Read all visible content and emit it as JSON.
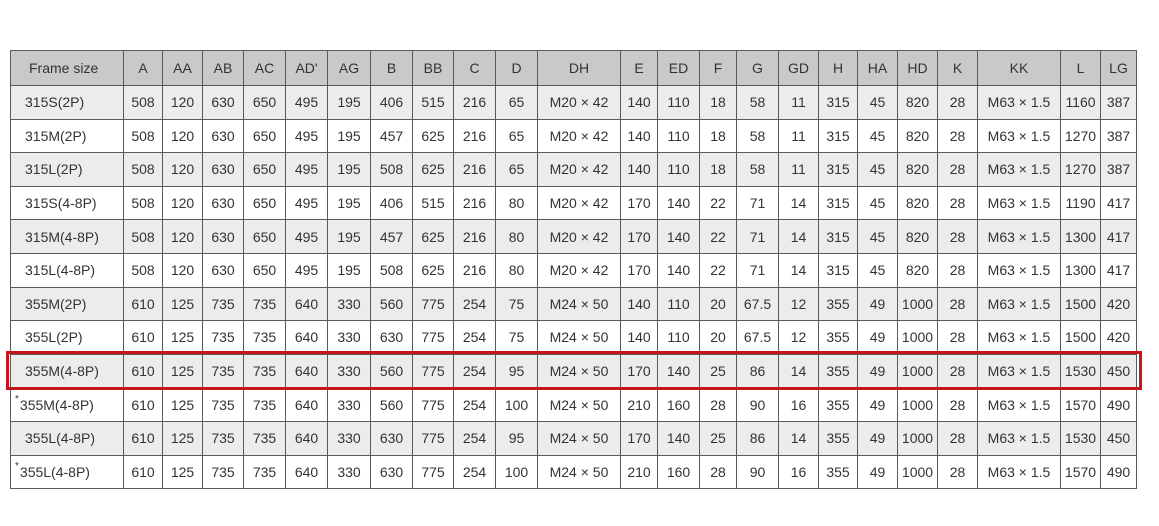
{
  "columns": [
    "Frame size",
    "A",
    "AA",
    "AB",
    "AC",
    "AD'",
    "AG",
    "B",
    "BB",
    "C",
    "D",
    "DH",
    "E",
    "ED",
    "F",
    "G",
    "GD",
    "H",
    "HA",
    "HD",
    "K",
    "KK",
    "L",
    "LG"
  ],
  "rows": [
    {
      "mark": "",
      "cells": [
        "315S(2P)",
        "508",
        "120",
        "630",
        "650",
        "495",
        "195",
        "406",
        "515",
        "216",
        "65",
        "M20 × 42",
        "140",
        "110",
        "18",
        "58",
        "11",
        "315",
        "45",
        "820",
        "28",
        "M63 × 1.5",
        "1160",
        "387"
      ]
    },
    {
      "mark": "",
      "cells": [
        "315M(2P)",
        "508",
        "120",
        "630",
        "650",
        "495",
        "195",
        "457",
        "625",
        "216",
        "65",
        "M20 × 42",
        "140",
        "110",
        "18",
        "58",
        "11",
        "315",
        "45",
        "820",
        "28",
        "M63 × 1.5",
        "1270",
        "387"
      ]
    },
    {
      "mark": "",
      "cells": [
        "315L(2P)",
        "508",
        "120",
        "630",
        "650",
        "495",
        "195",
        "508",
        "625",
        "216",
        "65",
        "M20 × 42",
        "140",
        "110",
        "18",
        "58",
        "11",
        "315",
        "45",
        "820",
        "28",
        "M63 × 1.5",
        "1270",
        "387"
      ]
    },
    {
      "mark": "",
      "cells": [
        "315S(4-8P)",
        "508",
        "120",
        "630",
        "650",
        "495",
        "195",
        "406",
        "515",
        "216",
        "80",
        "M20 × 42",
        "170",
        "140",
        "22",
        "71",
        "14",
        "315",
        "45",
        "820",
        "28",
        "M63 × 1.5",
        "1190",
        "417"
      ]
    },
    {
      "mark": "",
      "cells": [
        "315M(4-8P)",
        "508",
        "120",
        "630",
        "650",
        "495",
        "195",
        "457",
        "625",
        "216",
        "80",
        "M20 × 42",
        "170",
        "140",
        "22",
        "71",
        "14",
        "315",
        "45",
        "820",
        "28",
        "M63 × 1.5",
        "1300",
        "417"
      ]
    },
    {
      "mark": "",
      "cells": [
        "315L(4-8P)",
        "508",
        "120",
        "630",
        "650",
        "495",
        "195",
        "508",
        "625",
        "216",
        "80",
        "M20 × 42",
        "170",
        "140",
        "22",
        "71",
        "14",
        "315",
        "45",
        "820",
        "28",
        "M63 × 1.5",
        "1300",
        "417"
      ]
    },
    {
      "mark": "",
      "cells": [
        "355M(2P)",
        "610",
        "125",
        "735",
        "735",
        "640",
        "330",
        "560",
        "775",
        "254",
        "75",
        "M24 × 50",
        "140",
        "110",
        "20",
        "67.5",
        "12",
        "355",
        "49",
        "1000",
        "28",
        "M63 × 1.5",
        "1500",
        "420"
      ]
    },
    {
      "mark": "",
      "cells": [
        "355L(2P)",
        "610",
        "125",
        "735",
        "735",
        "640",
        "330",
        "630",
        "775",
        "254",
        "75",
        "M24 × 50",
        "140",
        "110",
        "20",
        "67.5",
        "12",
        "355",
        "49",
        "1000",
        "28",
        "M63 × 1.5",
        "1500",
        "420"
      ]
    },
    {
      "mark": "",
      "highlighted": true,
      "cells": [
        "355M(4-8P)",
        "610",
        "125",
        "735",
        "735",
        "640",
        "330",
        "560",
        "775",
        "254",
        "95",
        "M24 × 50",
        "170",
        "140",
        "25",
        "86",
        "14",
        "355",
        "49",
        "1000",
        "28",
        "M63 × 1.5",
        "1530",
        "450"
      ]
    },
    {
      "mark": "*",
      "cells": [
        "355M(4-8P)",
        "610",
        "125",
        "735",
        "735",
        "640",
        "330",
        "560",
        "775",
        "254",
        "100",
        "M24 × 50",
        "210",
        "160",
        "28",
        "90",
        "16",
        "355",
        "49",
        "1000",
        "28",
        "M63 × 1.5",
        "1570",
        "490"
      ]
    },
    {
      "mark": "",
      "cells": [
        "355L(4-8P)",
        "610",
        "125",
        "735",
        "735",
        "640",
        "330",
        "630",
        "775",
        "254",
        "95",
        "M24 × 50",
        "170",
        "140",
        "25",
        "86",
        "14",
        "355",
        "49",
        "1000",
        "28",
        "M63 × 1.5",
        "1530",
        "450"
      ]
    },
    {
      "mark": "*",
      "cells": [
        "355L(4-8P)",
        "610",
        "125",
        "735",
        "735",
        "640",
        "330",
        "630",
        "775",
        "254",
        "100",
        "M24 × 50",
        "210",
        "160",
        "28",
        "90",
        "16",
        "355",
        "49",
        "1000",
        "28",
        "M63 × 1.5",
        "1570",
        "490"
      ]
    }
  ],
  "colors": {
    "header_bg": "#c9c9c9",
    "odd_row_bg": "#ececec",
    "highlight_border": "#c4161c"
  }
}
